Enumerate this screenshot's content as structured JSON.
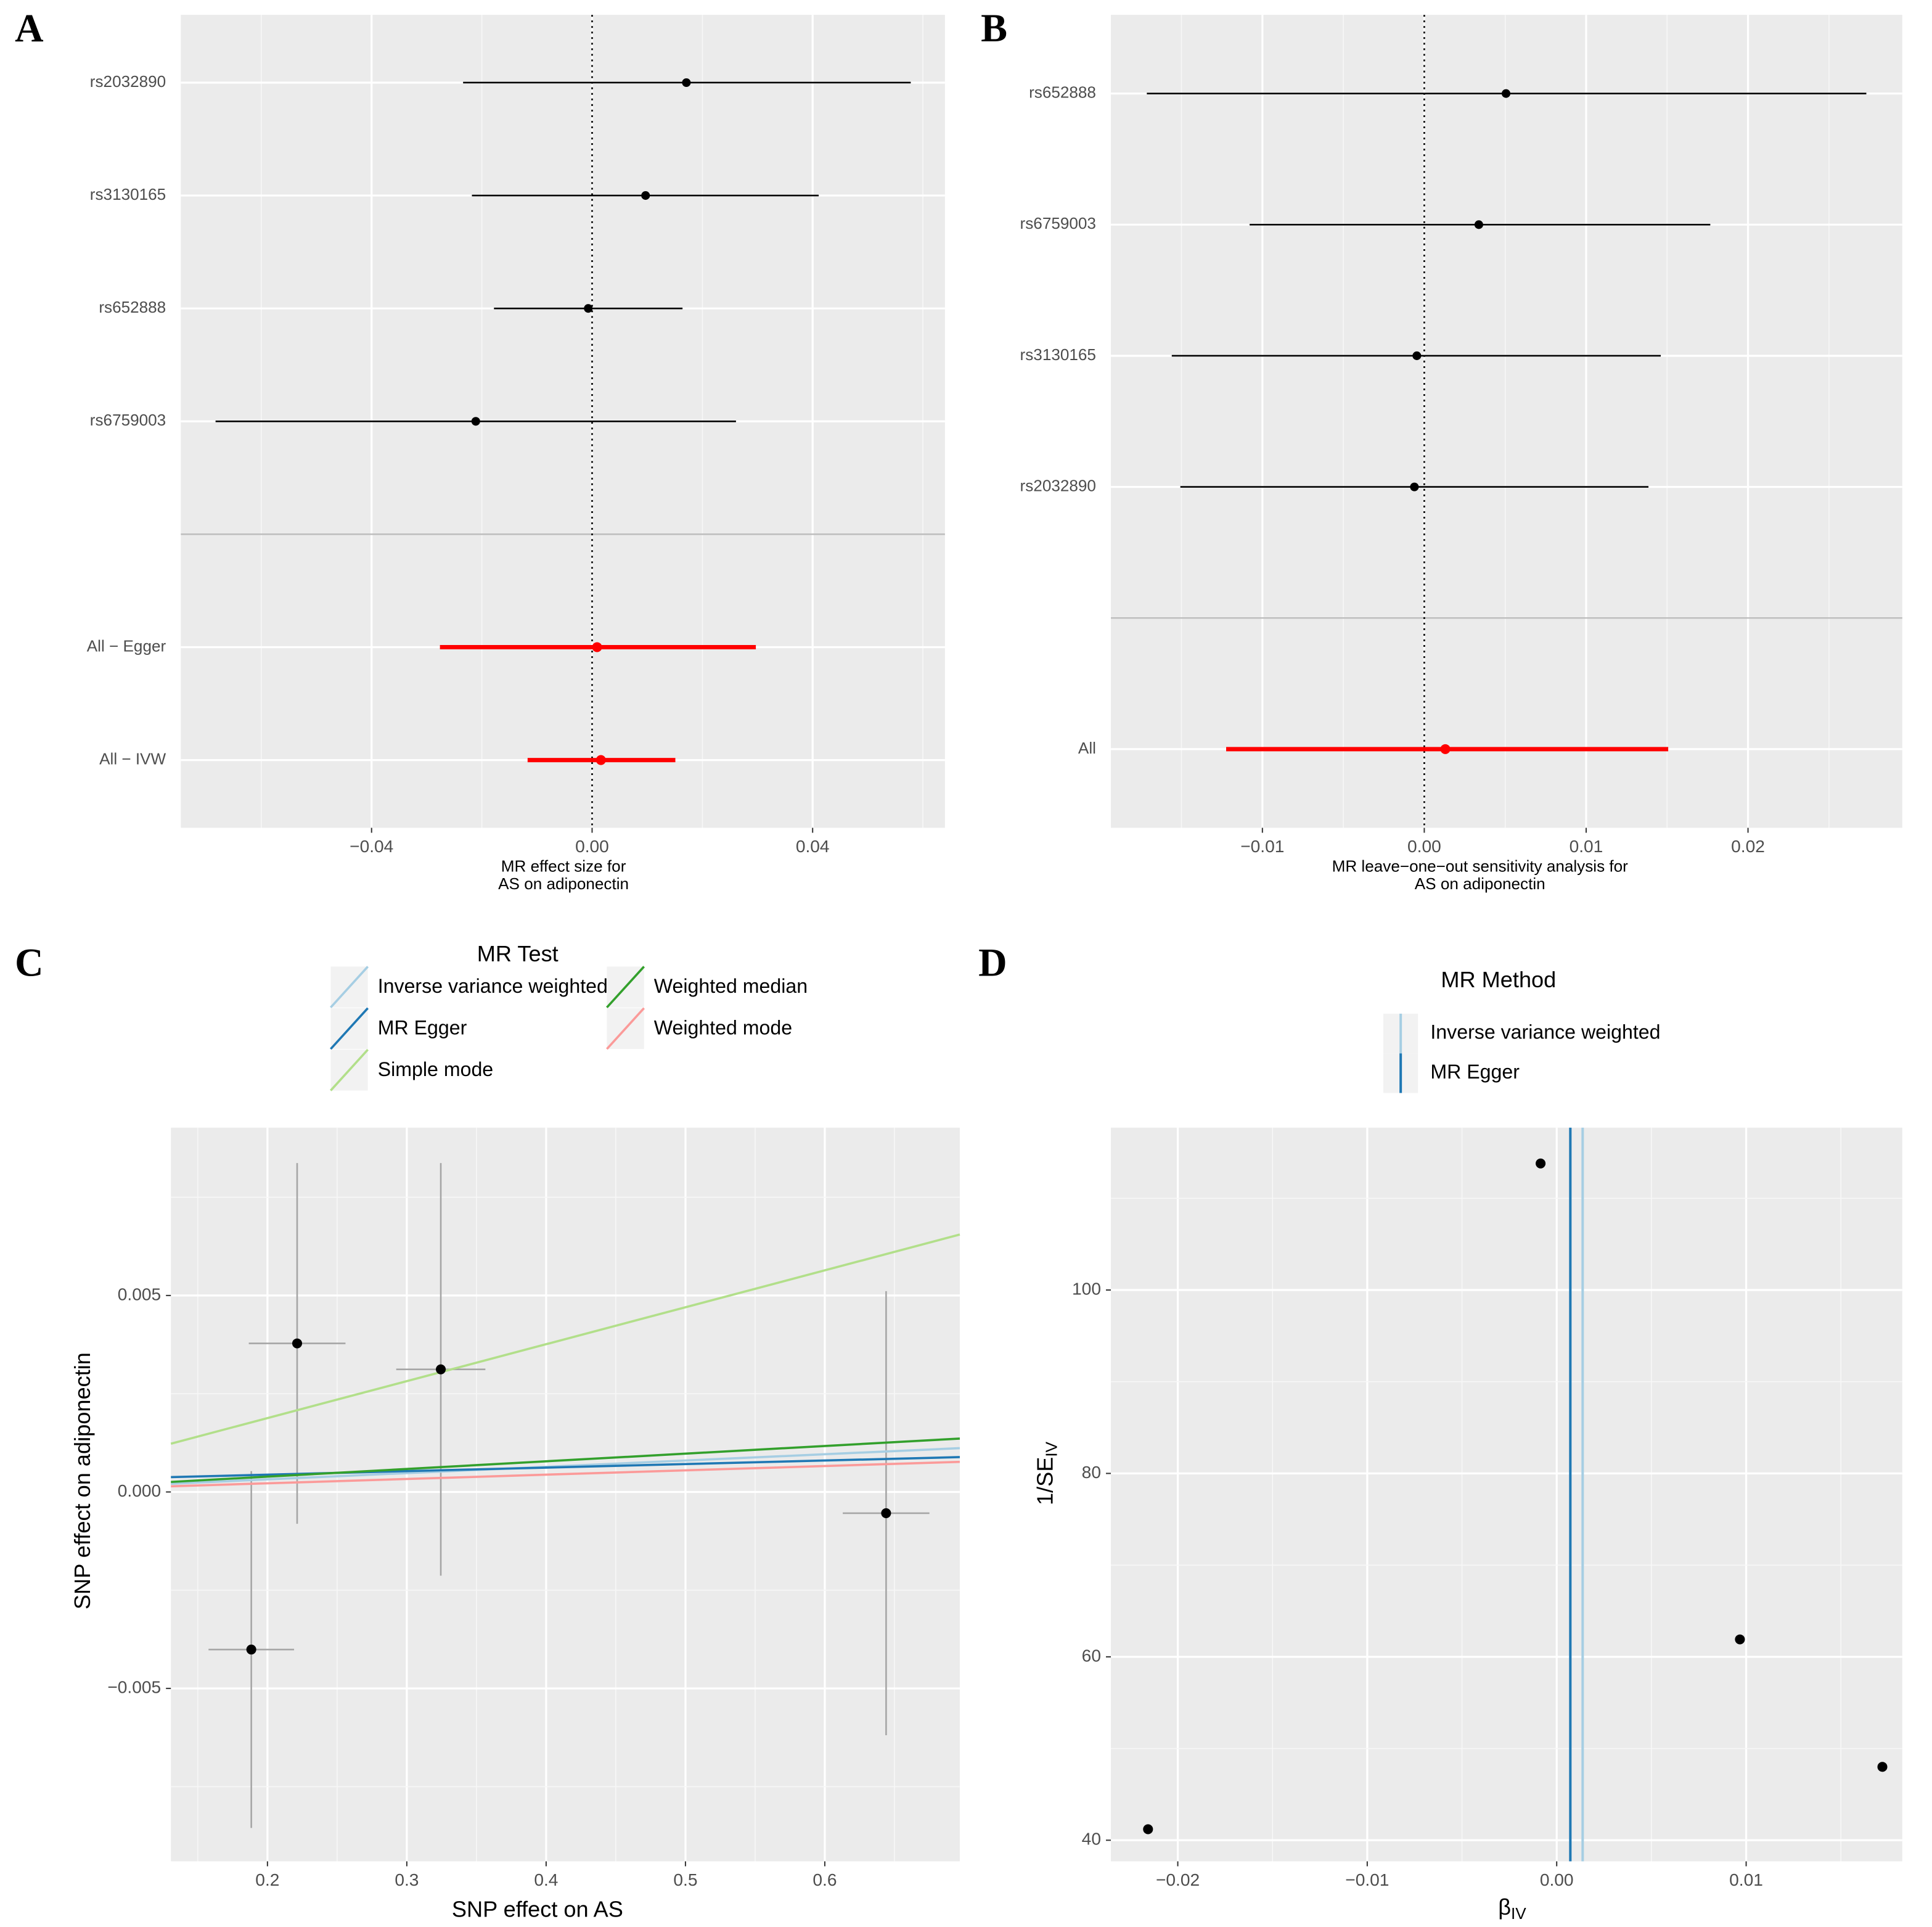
{
  "chart_data": [
    {
      "type": "forest",
      "panel": "A",
      "categories": [
        "rs2032890",
        "rs3130165",
        "rs652888",
        "rs6759003"
      ],
      "values": [
        0.0171,
        0.0097,
        -0.0007,
        -0.0211
      ],
      "ci_lower": [
        -0.0234,
        -0.0218,
        -0.0178,
        -0.0683
      ],
      "ci_upper": [
        0.0578,
        0.0411,
        0.0164,
        0.0261
      ],
      "color": "#000000",
      "summary": {
        "categories": [
          "All − Egger",
          "All − IVW"
        ],
        "values": [
          0.0009,
          0.0016
        ],
        "ci_lower": [
          -0.0276,
          -0.0117
        ],
        "ci_upper": [
          0.0297,
          0.0151
        ],
        "color": "#ff0000"
      },
      "xlabel": [
        "MR effect size for",
        "AS on adiponectin"
      ],
      "xlim": [
        -0.0746,
        0.064
      ],
      "xticks": [
        {
          "value": -0.04,
          "label": "−0.04"
        },
        {
          "value": 0,
          "label": "0.00"
        },
        {
          "value": 0.04,
          "label": "0.04"
        }
      ],
      "grid": true
    },
    {
      "type": "forest",
      "panel": "B",
      "categories": [
        "rs652888",
        "rs6759003",
        "rs3130165",
        "rs2032890"
      ],
      "values": [
        0.00505,
        0.00337,
        -0.00046,
        -0.00061
      ],
      "ci_lower": [
        -0.01714,
        -0.01079,
        -0.0156,
        -0.01507
      ],
      "ci_upper": [
        0.02731,
        0.01767,
        0.01461,
        0.01385
      ],
      "color": "#000000",
      "summary": {
        "categories": [
          "All"
        ],
        "values": [
          0.0013
        ],
        "ci_lower": [
          -0.01224
        ],
        "ci_upper": [
          0.01507
        ],
        "color": "#ff0000"
      },
      "xlabel": [
        "MR leave−one−out sensitivity analysis for",
        "AS on adiponectin"
      ],
      "xlim": [
        -0.01936,
        0.02953
      ],
      "xticks": [
        {
          "value": -0.01,
          "label": "−0.01"
        },
        {
          "value": 0,
          "label": "0.00"
        },
        0.01,
        0.02
      ],
      "grid": true
    },
    {
      "type": "scatter",
      "panel": "C",
      "x": [
        0.2213,
        0.3244,
        0.1884,
        0.644
      ],
      "values": [
        0.00378,
        0.00312,
        -0.00401,
        -0.00054
      ],
      "x_err": [
        0.0347,
        0.032,
        0.0307,
        0.0311
      ],
      "y_err": [
        0.00459,
        0.00525,
        0.00454,
        0.00565
      ],
      "point_color": "#000000",
      "error_color": "#a6a6a6",
      "lines": [
        {
          "name": "Inverse variance weighted",
          "color": "#a6cee3",
          "slope": 0.0016,
          "intercept": 0
        },
        {
          "name": "MR Egger",
          "color": "#1f78b4",
          "slope": 0.0009,
          "intercept": 0.00026
        },
        {
          "name": "Simple mode",
          "color": "#b2df8a",
          "slope": 0.0094,
          "intercept": 0
        },
        {
          "name": "Weighted median",
          "color": "#33a02c",
          "slope": 0.00195,
          "intercept": 0
        },
        {
          "name": "Weighted mode",
          "color": "#fb9a99",
          "slope": 0.0011,
          "intercept": 0
        }
      ],
      "legend_title": "MR Test",
      "xlabel": "SNP effect on AS",
      "ylabel": "SNP effect on adiponectin",
      "xlim": [
        0.1307,
        0.6969
      ],
      "ylim": [
        -0.0094,
        0.00927
      ],
      "xticks": [
        0.2,
        0.3,
        0.4,
        0.5,
        0.6
      ],
      "yticks": [
        {
          "value": -0.005,
          "label": "−0.005"
        },
        {
          "value": 0,
          "label": "0.000"
        },
        0.005
      ],
      "grid": true
    },
    {
      "type": "funnel",
      "panel": "D",
      "x": [
        -0.00085,
        0.00967,
        0.01719,
        -0.02157
      ],
      "values": [
        113.8,
        61.9,
        48.0,
        41.2
      ],
      "point_color": "#000000",
      "lines": [
        {
          "name": "Inverse variance weighted",
          "color": "#a6cee3",
          "value": 0.00137
        },
        {
          "name": "MR Egger",
          "color": "#1f78b4",
          "value": 0.00072
        }
      ],
      "legend_title": "MR Method",
      "xlabel": {
        "main": "β",
        "sub": "IV"
      },
      "ylabel": {
        "main": "1/SE",
        "sub": "IV"
      },
      "xlim": [
        -0.02353,
        0.01824
      ],
      "ylim": [
        37.7,
        117.7
      ],
      "xticks": [
        {
          "value": -0.02,
          "label": "−0.02"
        },
        {
          "value": -0.01,
          "label": "−0.01"
        },
        {
          "value": 0,
          "label": "0.00"
        },
        0.01
      ],
      "yticks": [
        40,
        60,
        80,
        100
      ],
      "grid": true
    }
  ]
}
